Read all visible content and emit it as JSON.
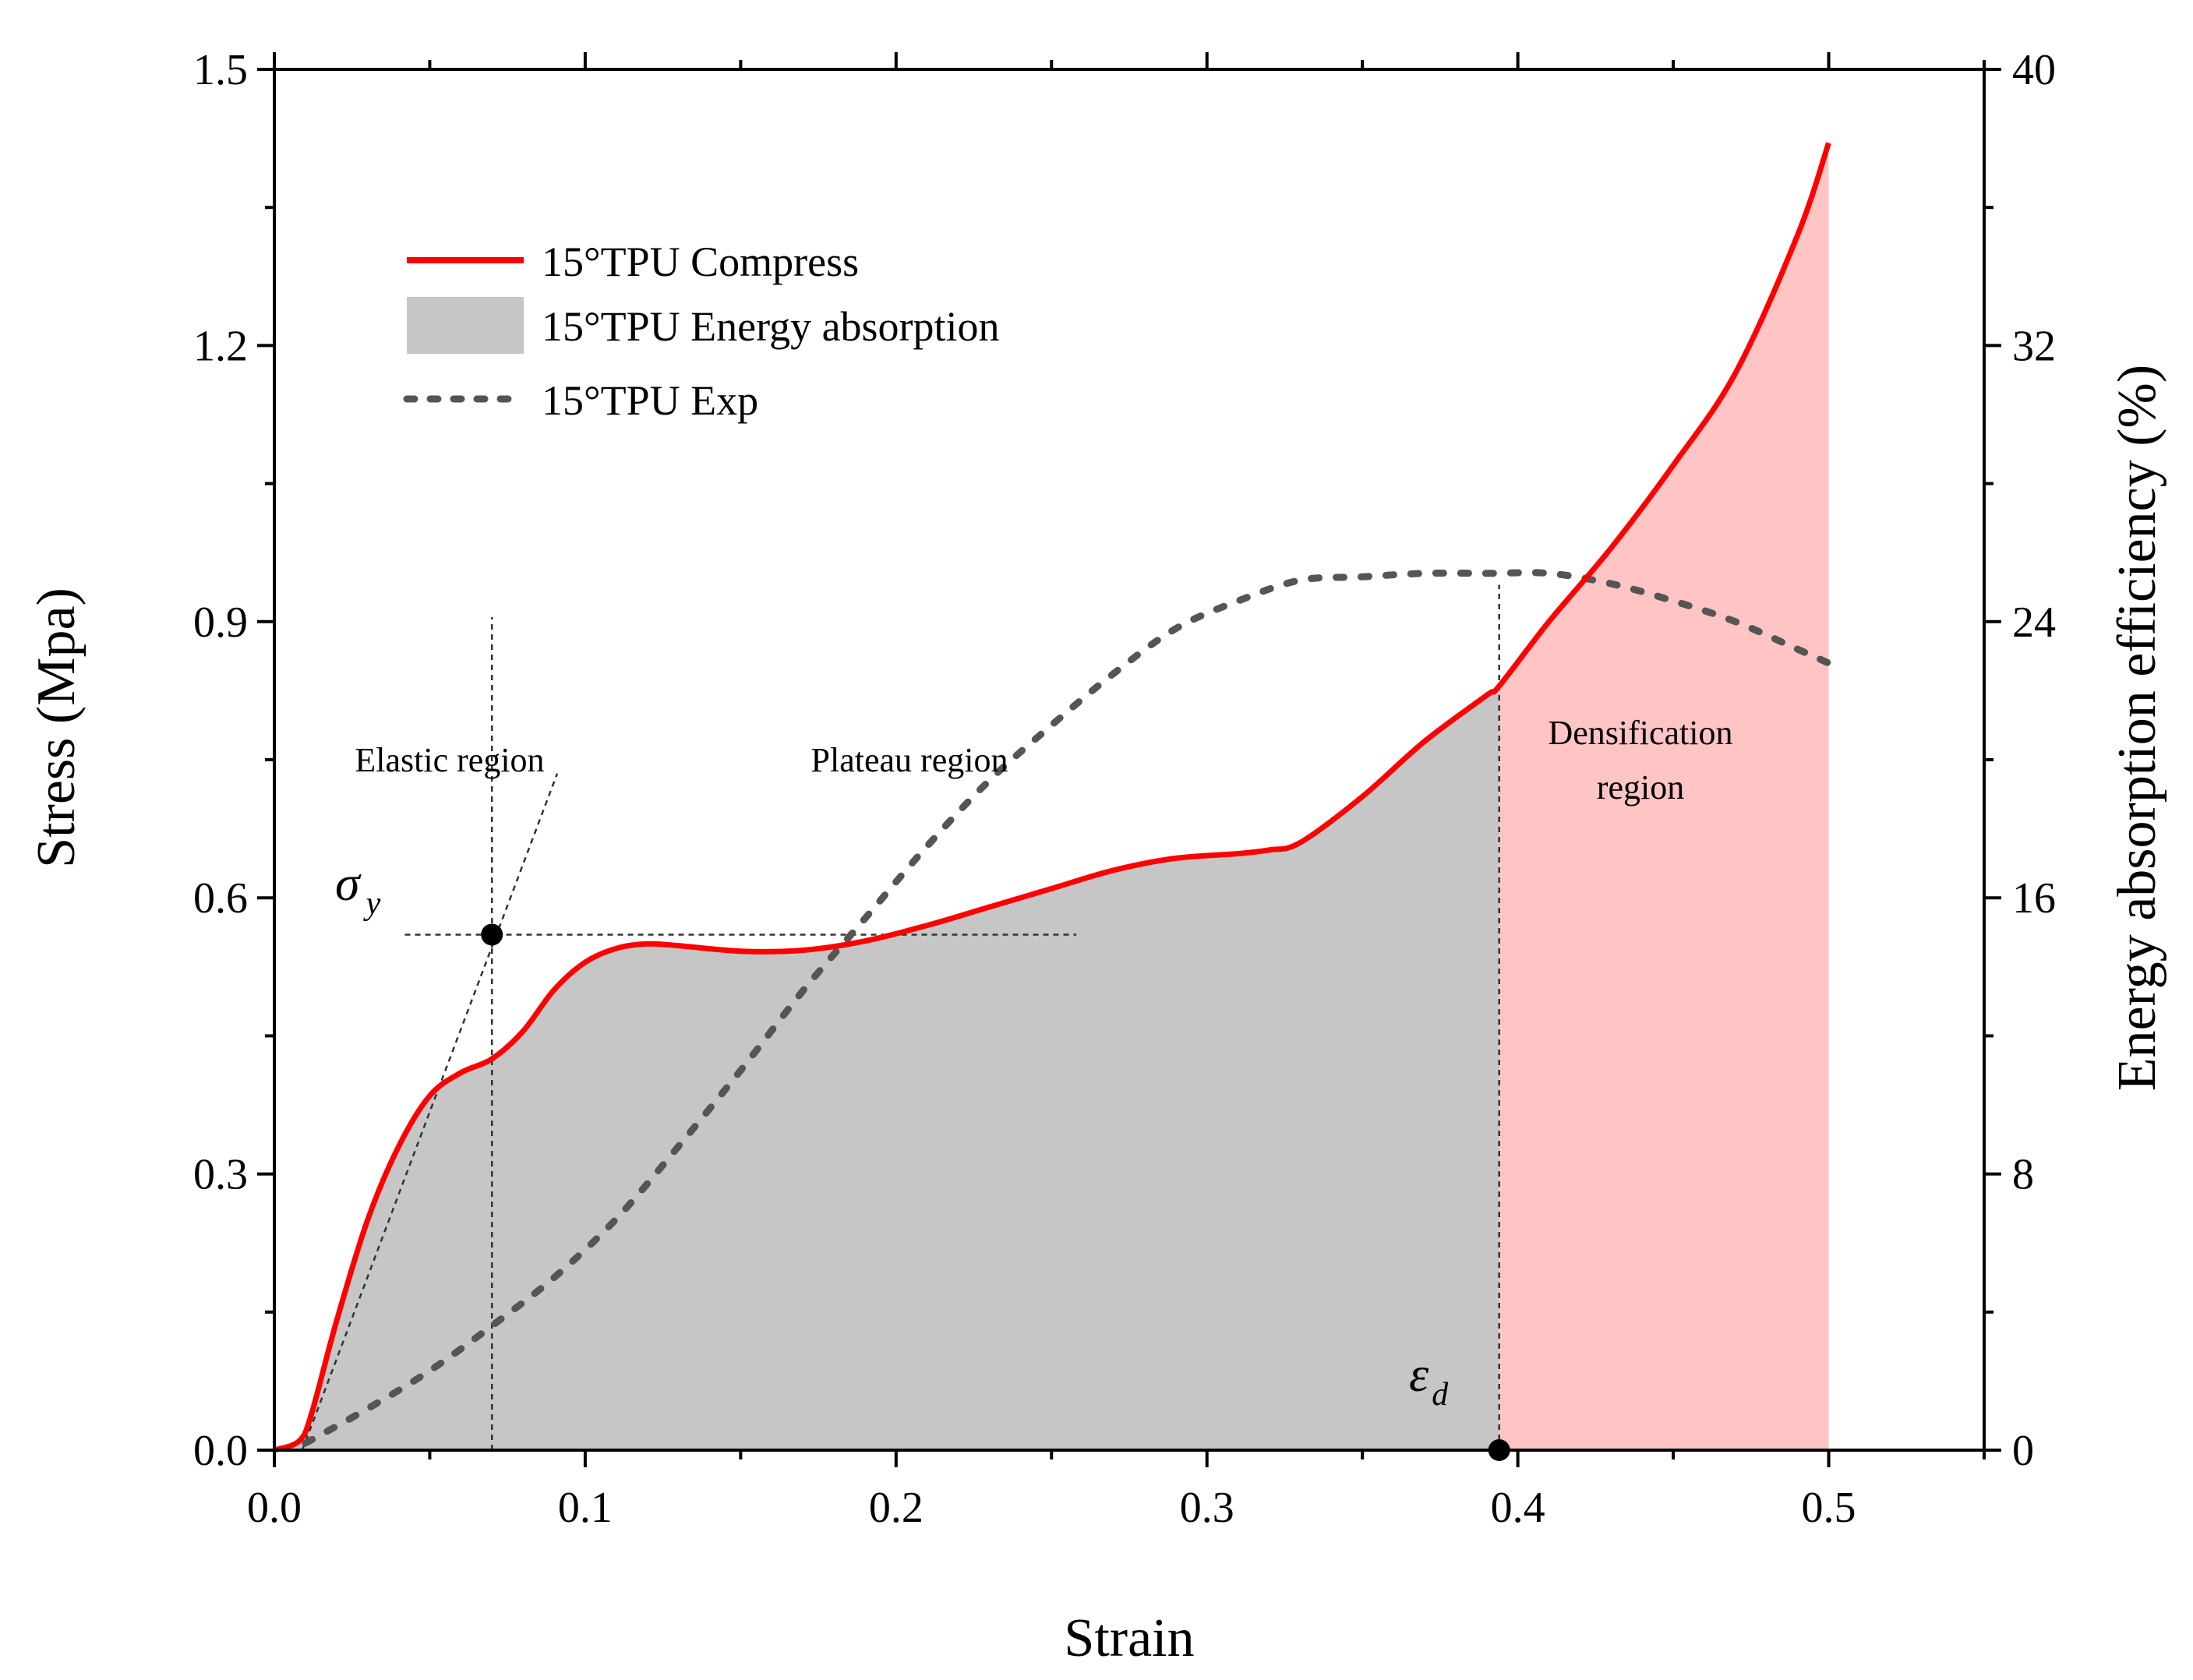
{
  "chart_data": {
    "type": "line",
    "title": "",
    "xlabel": "Strain",
    "ylabel": "Stress (Mpa)",
    "y2label": "Energy absorption efficiency (%)",
    "xlim": [
      0,
      0.55
    ],
    "ylim": [
      0,
      1.5
    ],
    "y2lim": [
      0,
      40
    ],
    "x_ticks": [
      0.0,
      0.1,
      0.2,
      0.3,
      0.4,
      0.5
    ],
    "x_tick_labels": [
      "0.0",
      "0.1",
      "0.2",
      "0.3",
      "0.4",
      "0.5"
    ],
    "y_ticks": [
      0.0,
      0.3,
      0.6,
      0.9,
      1.2,
      1.5
    ],
    "y_tick_labels": [
      "0.0",
      "0.3",
      "0.6",
      "0.9",
      "1.2",
      "1.5"
    ],
    "y2_ticks": [
      0,
      8,
      16,
      24,
      32,
      40
    ],
    "y2_tick_labels": [
      "0",
      "8",
      "16",
      "24",
      "32",
      "40"
    ],
    "legend_position": "top-left",
    "colors": {
      "compress": "#ff0000",
      "energy_fill": "#c6c6c6",
      "densification_fill": "#ffc4c4",
      "exp": "#555555"
    },
    "series": [
      {
        "name": "15°TPU Compress",
        "axis": "left",
        "style": "solid",
        "x": [
          0,
          0.008,
          0.012,
          0.02,
          0.03,
          0.04,
          0.05,
          0.06,
          0.07,
          0.08,
          0.09,
          0.1,
          0.11,
          0.12,
          0.13,
          0.15,
          0.17,
          0.19,
          0.21,
          0.23,
          0.25,
          0.27,
          0.29,
          0.31,
          0.32,
          0.33,
          0.35,
          0.37,
          0.39,
          0.394,
          0.41,
          0.43,
          0.45,
          0.47,
          0.49,
          0.5
        ],
        "values": [
          0,
          0.01,
          0.04,
          0.14,
          0.25,
          0.33,
          0.385,
          0.41,
          0.425,
          0.455,
          0.5,
          0.53,
          0.545,
          0.55,
          0.548,
          0.542,
          0.543,
          0.553,
          0.57,
          0.59,
          0.61,
          0.63,
          0.643,
          0.648,
          0.652,
          0.66,
          0.71,
          0.77,
          0.82,
          0.83,
          0.9,
          0.98,
          1.07,
          1.17,
          1.32,
          1.42
        ]
      },
      {
        "name": "15°TPU Exp",
        "axis": "right",
        "style": "dotted",
        "x": [
          0.01,
          0.03,
          0.05,
          0.07,
          0.09,
          0.11,
          0.13,
          0.15,
          0.17,
          0.19,
          0.21,
          0.23,
          0.25,
          0.27,
          0.29,
          0.31,
          0.33,
          0.35,
          0.37,
          0.39,
          0.41,
          0.43,
          0.45,
          0.47,
          0.49,
          0.5
        ],
        "values": [
          0.2,
          1.2,
          2.3,
          3.6,
          5.0,
          6.7,
          8.8,
          11.0,
          13.3,
          15.4,
          17.5,
          19.4,
          21.0,
          22.5,
          23.8,
          24.6,
          25.2,
          25.3,
          25.4,
          25.4,
          25.4,
          25.1,
          24.6,
          24.0,
          23.2,
          22.8
        ]
      }
    ],
    "energy_absorption_area": {
      "name": "15°TPU Energy absorption",
      "x_range": [
        0,
        0.394
      ]
    },
    "densification_area": {
      "x_range": [
        0.394,
        0.5
      ]
    },
    "yield_point": {
      "x": 0.07,
      "y": 0.56,
      "label_main": "σ",
      "label_sub": "y"
    },
    "densification_point": {
      "x": 0.394,
      "y": 0,
      "label_main": "ε",
      "label_sub": "d"
    },
    "annotations": {
      "elastic": "Elastic region",
      "plateau": "Plateau region",
      "densification_line1": "Densification",
      "densification_line2": "region"
    }
  }
}
